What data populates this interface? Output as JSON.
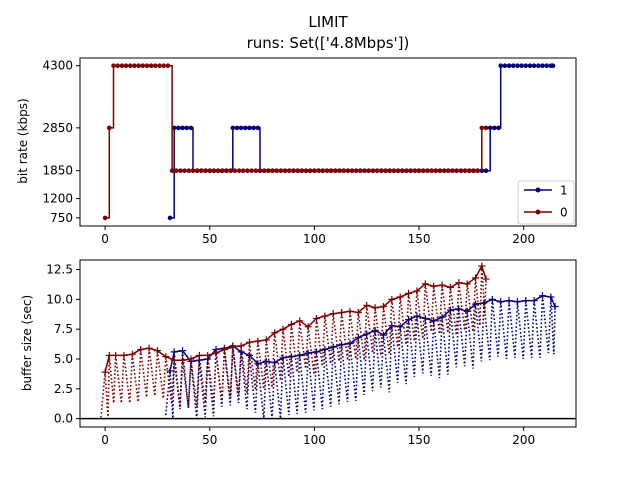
{
  "figure": {
    "title": "LIMIT",
    "subtitle": "runs: Set(['4.8Mbps'])"
  },
  "colors": {
    "series_1": "#00007f",
    "series_0": "#7f0000",
    "baseline": "#000000"
  },
  "chart_data": [
    {
      "type": "line",
      "step": "post",
      "ylabel": "bit rate (kbps)",
      "xlim": [
        -12,
        225
      ],
      "ylim": [
        560,
        4480
      ],
      "xticks": [
        0,
        50,
        100,
        150,
        200
      ],
      "yticks": [
        750,
        1200,
        1850,
        2850,
        4300
      ],
      "legend": "lower-right",
      "series": [
        {
          "name": "1",
          "color": "#00007f",
          "segments": [
            {
              "x0": 31,
              "x1": 33,
              "y": 750
            },
            {
              "x0": 33,
              "x1": 42,
              "y": 2850
            },
            {
              "x0": 42,
              "x1": 61,
              "y": 1850
            },
            {
              "x0": 61,
              "x1": 74,
              "y": 2850
            },
            {
              "x0": 74,
              "x1": 184,
              "y": 1850
            },
            {
              "x0": 184,
              "x1": 189,
              "y": 2850
            },
            {
              "x0": 189,
              "x1": 214,
              "y": 4300
            }
          ]
        },
        {
          "name": "0",
          "color": "#7f0000",
          "segments": [
            {
              "x0": 0,
              "x1": 2,
              "y": 750
            },
            {
              "x0": 2,
              "x1": 4,
              "y": 2850
            },
            {
              "x0": 4,
              "x1": 32,
              "y": 4300
            },
            {
              "x0": 32,
              "x1": 180,
              "y": 1850
            },
            {
              "x0": 180,
              "x1": 182,
              "y": 2850
            }
          ]
        }
      ]
    },
    {
      "type": "line",
      "ylabel": "buffer size (sec)",
      "xlim": [
        -12,
        225
      ],
      "ylim": [
        -0.7,
        13.3
      ],
      "xticks": [
        0,
        50,
        100,
        150,
        200
      ],
      "yticks": [
        0.0,
        2.5,
        5.0,
        7.5,
        10.0,
        12.5
      ],
      "ytick_labels": [
        "0.0",
        "2.5",
        "5.0",
        "7.5",
        "10.0",
        "12.5"
      ],
      "baseline_y": 0,
      "series": [
        {
          "name": "1",
          "color": "#00007f",
          "x": [
            31,
            33,
            37,
            41,
            45,
            49,
            53,
            57,
            61,
            65,
            69,
            73,
            77,
            81,
            85,
            89,
            93,
            97,
            101,
            105,
            109,
            113,
            117,
            121,
            125,
            129,
            133,
            137,
            141,
            145,
            149,
            153,
            157,
            161,
            165,
            169,
            173,
            177,
            181,
            185,
            189,
            193,
            197,
            201,
            205,
            209,
            213,
            215
          ],
          "y": [
            4.0,
            5.6,
            5.7,
            4.8,
            4.9,
            5.0,
            5.8,
            5.9,
            6.1,
            5.6,
            5.3,
            4.6,
            4.8,
            4.7,
            5.1,
            5.2,
            5.3,
            5.5,
            5.6,
            5.8,
            6.0,
            6.2,
            6.3,
            6.8,
            7.1,
            7.4,
            7.0,
            7.8,
            7.7,
            8.3,
            8.6,
            8.4,
            8.2,
            8.5,
            9.1,
            9.2,
            9.0,
            9.6,
            9.7,
            10.0,
            9.8,
            9.9,
            9.8,
            9.9,
            9.9,
            10.3,
            10.2,
            9.4
          ],
          "sawtooth_drop": 4.8
        },
        {
          "name": "0",
          "color": "#7f0000",
          "x": [
            0,
            2,
            5,
            9,
            13,
            17,
            21,
            25,
            29,
            33,
            37,
            41,
            45,
            49,
            53,
            57,
            61,
            65,
            69,
            73,
            77,
            81,
            85,
            89,
            93,
            97,
            101,
            105,
            109,
            113,
            117,
            121,
            125,
            129,
            133,
            137,
            141,
            145,
            149,
            153,
            157,
            161,
            165,
            169,
            173,
            177,
            180,
            182
          ],
          "y": [
            3.9,
            5.3,
            5.3,
            5.3,
            5.4,
            5.8,
            5.9,
            5.7,
            5.2,
            4.9,
            4.9,
            5.0,
            5.3,
            5.3,
            5.5,
            5.8,
            6.0,
            6.1,
            6.4,
            6.5,
            6.6,
            7.2,
            7.5,
            7.9,
            8.2,
            7.7,
            8.4,
            8.6,
            8.8,
            8.9,
            9.0,
            8.9,
            9.5,
            9.3,
            9.4,
            10.0,
            10.2,
            10.5,
            10.7,
            11.3,
            11.1,
            11.2,
            11.0,
            11.4,
            11.3,
            11.8,
            12.8,
            11.7
          ],
          "sawtooth_drop": 4.0
        }
      ]
    }
  ]
}
